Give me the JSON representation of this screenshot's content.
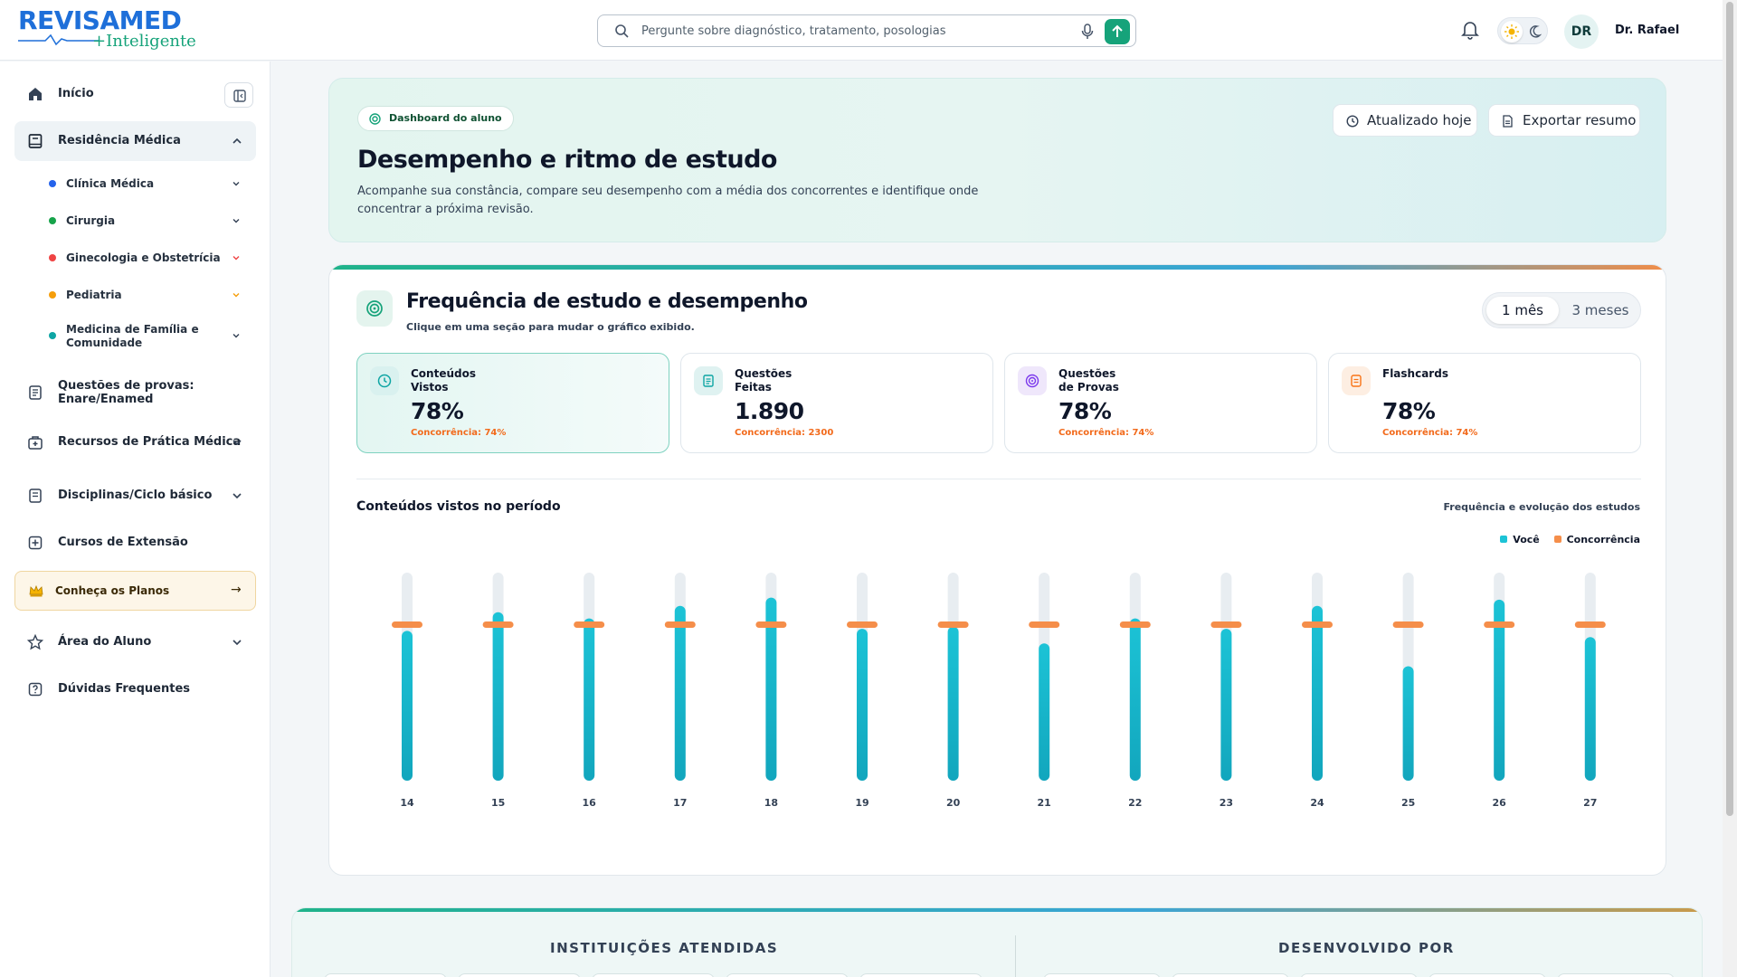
{
  "header": {
    "logo_top": "REVISAMED",
    "logo_bottom": "+Inteligente",
    "search_placeholder": "Pergunte sobre diagnóstico, tratamento, posologias",
    "avatar_initials": "DR",
    "user_name": "Dr. Rafael"
  },
  "sidebar": {
    "items": [
      {
        "label": "Início"
      },
      {
        "label": "Residência Médica"
      },
      {
        "label": "Questões de provas: Enare/Enamed"
      },
      {
        "label": "Recursos de Prática Médica"
      },
      {
        "label": "Disciplinas/Ciclo básico"
      },
      {
        "label": "Cursos de Extensão"
      },
      {
        "label": "Área do Aluno"
      },
      {
        "label": "Dúvidas Frequentes"
      }
    ],
    "subitems": [
      {
        "label": "Clínica Médica",
        "color": "#2563eb"
      },
      {
        "label": "Cirurgia",
        "color": "#16a34a"
      },
      {
        "label": "Ginecologia e Obstetrícia",
        "color": "#ef4444"
      },
      {
        "label": "Pediatria",
        "color": "#f59e0b"
      },
      {
        "label": "Medicina de Família e Comunidade",
        "color": "#0ea5a4"
      }
    ],
    "plans_label": "Conheça os Planos",
    "plans_arrow": "→"
  },
  "hero": {
    "badge": "Dashboard do aluno",
    "title": "Desempenho e ritmo de estudo",
    "description": "Acompanhe sua constância, compare seu desempenho com a média dos concorrentes e identifique onde concentrar a próxima revisão.",
    "updated_label": "Atualizado hoje",
    "export_label": "Exportar resumo"
  },
  "performance": {
    "title": "Frequência de estudo e desempenho",
    "subtitle": "Clique em uma seção para mudar o gráfico exibido.",
    "range_options": [
      "1 mês",
      "3 meses"
    ],
    "range_selected": "1 mês",
    "stats": [
      {
        "title": "Conteúdos Vistos",
        "value": "78%",
        "comparison": "Concorrência: 74%",
        "icon": "clock-icon",
        "color": "#0ea5a4"
      },
      {
        "title": "Questões Feitas",
        "value": "1.890",
        "comparison": "Concorrência: 2300",
        "icon": "list-icon",
        "color": "#0ea5a4"
      },
      {
        "title": "Questões de Provas",
        "value": "78%",
        "comparison": "Concorrência: 74%",
        "icon": "target-icon",
        "color": "#7c3aed"
      },
      {
        "title": "Flashcards",
        "value": "78%",
        "comparison": "Concorrência: 74%",
        "icon": "card-icon",
        "color": "#f97316"
      }
    ],
    "chart_title": "Conteúdos vistos no período",
    "chart_link": "Frequência e evolução dos estudos"
  },
  "chart_data": {
    "type": "bar",
    "categories": [
      "14",
      "15",
      "16",
      "17",
      "18",
      "19",
      "20",
      "21",
      "22",
      "23",
      "24",
      "25",
      "26",
      "27"
    ],
    "series": [
      {
        "name": "Você",
        "values": [
          72,
          81,
          78,
          84,
          88,
          73,
          74,
          66,
          78,
          73,
          84,
          55,
          87,
          69
        ],
        "color": "#1cc3d6"
      },
      {
        "name": "Concorrência",
        "values": [
          75,
          75,
          75,
          75,
          75,
          75,
          75,
          75,
          75,
          75,
          75,
          75,
          75,
          75
        ],
        "color": "#f58e4a"
      }
    ],
    "ylim": [
      0,
      100
    ],
    "legend": "top-right",
    "grid": false
  },
  "footer": {
    "institutions_title": "INSTITUIÇÕES ATENDIDAS",
    "developed_title": "DESENVOLVIDO POR"
  }
}
